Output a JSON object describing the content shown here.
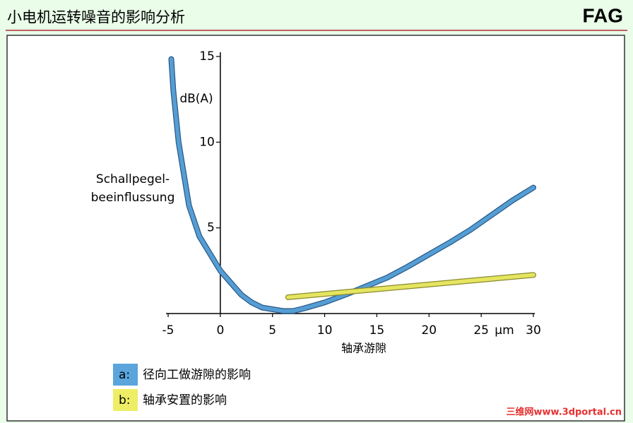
{
  "header": {
    "title": "小电机运转噪音的影响分析",
    "logo": "FAG"
  },
  "chart_data": {
    "type": "line",
    "y_label": [
      "Schallpegel-",
      "beeinflussung"
    ],
    "y_unit": "dB(A)",
    "x_label": "轴承游隙",
    "x_unit": "μm",
    "xlim": [
      -5,
      30
    ],
    "ylim": [
      0,
      15
    ],
    "xticks": [
      -5,
      0,
      5,
      10,
      15,
      20,
      25,
      30
    ],
    "yticks": [
      5,
      10,
      15
    ],
    "series": [
      {
        "key": "a:",
        "name": "径向工做游隙的影响",
        "color": "#5aa5dc",
        "outline": "#2a5a8a",
        "x": [
          -4.7,
          -4.5,
          -4,
          -3,
          -2,
          -1,
          0,
          1,
          2,
          3,
          4,
          5,
          6,
          7,
          8,
          10,
          12,
          14,
          16,
          18,
          20,
          22,
          24,
          26,
          28,
          30
        ],
        "values": [
          14.85,
          13.0,
          10.0,
          6.3,
          4.5,
          3.5,
          2.5,
          1.8,
          1.1,
          0.65,
          0.35,
          0.25,
          0.15,
          0.15,
          0.3,
          0.65,
          1.1,
          1.6,
          2.1,
          2.75,
          3.45,
          4.15,
          4.9,
          5.75,
          6.6,
          7.35
        ]
      },
      {
        "key": "b:",
        "name": "轴承安置的影响",
        "color": "#eeee66",
        "outline": "#8a8a30",
        "x": [
          6.5,
          30
        ],
        "values": [
          0.95,
          2.25
        ]
      }
    ]
  },
  "watermark": "三维网www.3dportal.cn"
}
